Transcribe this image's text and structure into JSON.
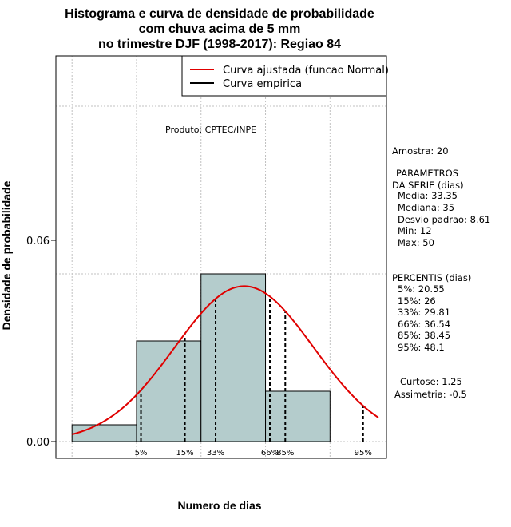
{
  "chart_data": {
    "type": "bar",
    "title": [
      "Histograma e curva de densidade de probabilidade",
      "com chuva acima de 5 mm",
      "no trimestre DJF (1998-2017): Regiao 84"
    ],
    "xlabel": "Numero de dias",
    "ylabel": "Densidade de probabilidade",
    "xlim": [
      10,
      51
    ],
    "ylim": [
      -0.005,
      0.115
    ],
    "yticks": [
      0.0,
      0.06
    ],
    "ytick_labels": [
      "0.00",
      "0.06"
    ],
    "grid_x": [
      12,
      20,
      28,
      36,
      44
    ],
    "grid_y": [
      0.05,
      0.1
    ],
    "bins": [
      {
        "from": 12,
        "to": 20,
        "density": 0.005
      },
      {
        "from": 20,
        "to": 28,
        "density": 0.03
      },
      {
        "from": 28,
        "to": 36,
        "density": 0.05
      },
      {
        "from": 36,
        "to": 44,
        "density": 0.015
      }
    ],
    "fitted_normal": {
      "mean": 33.35,
      "sd": 8.61,
      "from": 12,
      "to": 50,
      "color": "#e00000"
    },
    "bar_color": "#b4cccc",
    "percentiles": [
      {
        "label": "5%",
        "value": 20.55
      },
      {
        "label": "15%",
        "value": 26
      },
      {
        "label": "33%",
        "value": 29.81
      },
      {
        "label": "66%",
        "value": 36.54
      },
      {
        "label": "85%",
        "value": 38.45
      },
      {
        "label": "95%",
        "value": 48.1
      }
    ],
    "legend": [
      {
        "label": "Curva ajustada (funcao Normal)",
        "color": "#e00000"
      },
      {
        "label": "Curva empirica",
        "color": "#000000"
      }
    ],
    "legend_position": "top-right",
    "product_note": "Produto: CPTEC/INPE"
  },
  "side_panel": {
    "lines": [
      "Amostra: 20",
      "PARAMETROS",
      "DA SERIE (dias)",
      "Media: 33.35",
      "Mediana: 35",
      "Desvio padrao: 8.61",
      "Min: 12",
      "Max: 50",
      "PERCENTIS (dias)",
      "5%: 20.55",
      "15%: 26",
      "33%: 29.81",
      "66%: 36.54",
      "85%: 38.45",
      "95%: 48.1",
      "Curtose: 1.25",
      "Assimetria: -0.5"
    ]
  }
}
